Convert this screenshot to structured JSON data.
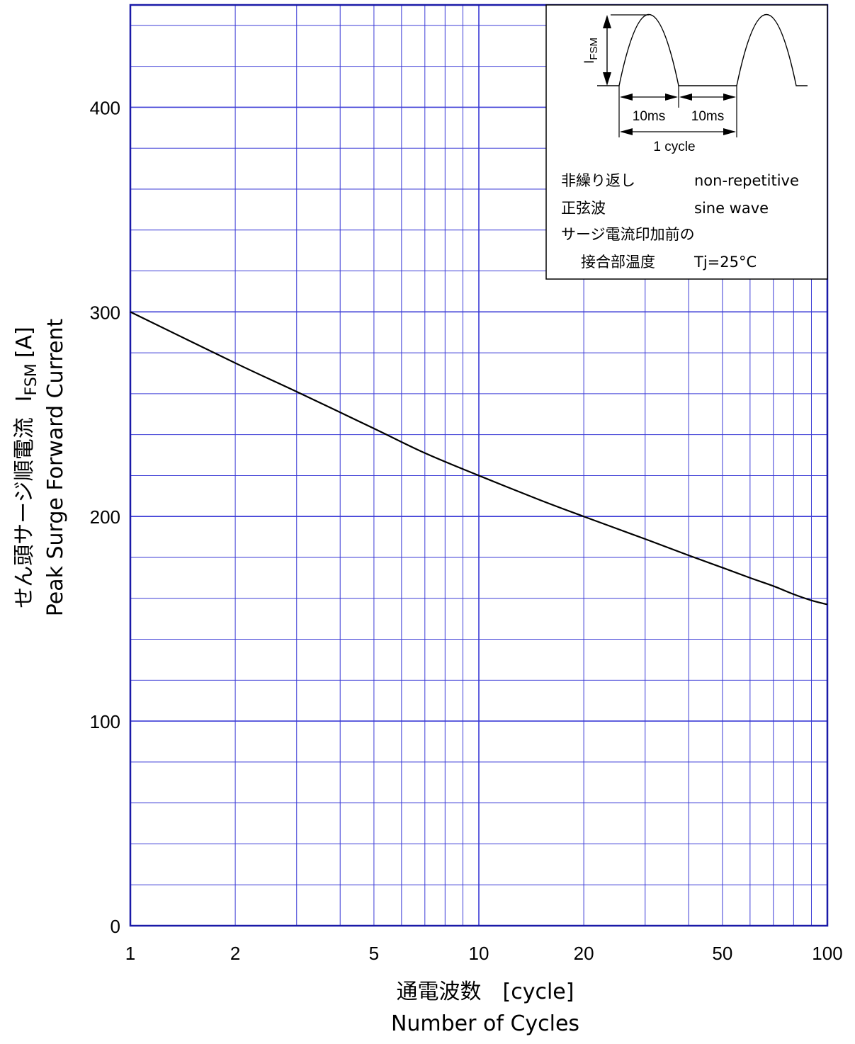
{
  "chart_data": {
    "type": "line",
    "title": "",
    "xlabel_jp": "通電波数　[cycle]",
    "xlabel_en": "Number of Cycles",
    "ylabel_jp": "せん頭サージ順電流",
    "ylabel_sym": "I",
    "ylabel_sub": "FSM",
    "ylabel_unit": "[A]",
    "ylabel_en": "Peak Surge Forward Current",
    "x_scale": "log",
    "xlim": [
      1,
      100
    ],
    "ylim": [
      0,
      450
    ],
    "x_ticks": [
      1,
      2,
      5,
      10,
      20,
      50,
      100
    ],
    "y_ticks": [
      0,
      100,
      200,
      300,
      400
    ],
    "grid": true,
    "series": [
      {
        "x": [
          1,
          2,
          3,
          5,
          7,
          10,
          15,
          20,
          30,
          40,
          50,
          60,
          70,
          80,
          90,
          100
        ],
        "y": [
          300,
          275,
          261,
          243,
          231,
          220,
          208,
          200,
          189,
          181,
          175,
          170,
          166,
          162,
          159,
          157
        ]
      }
    ]
  },
  "inset": {
    "waveform_label": "I",
    "waveform_label_sub": "FSM",
    "half_cycle_1": "10ms",
    "half_cycle_2": "10ms",
    "cycle_label": "1 cycle",
    "conditions": [
      {
        "jp": "非繰り返し",
        "en": "non-repetitive"
      },
      {
        "jp": "正弦波",
        "en": "sine wave"
      },
      {
        "jp": "サージ電流印加前の",
        "en": ""
      },
      {
        "jp": "接合部温度",
        "en": "Tj=25°C"
      }
    ]
  },
  "colors": {
    "grid": "#3b3bd6",
    "frame": "#1a1aa8",
    "curve": "#000000",
    "text": "#000000"
  }
}
